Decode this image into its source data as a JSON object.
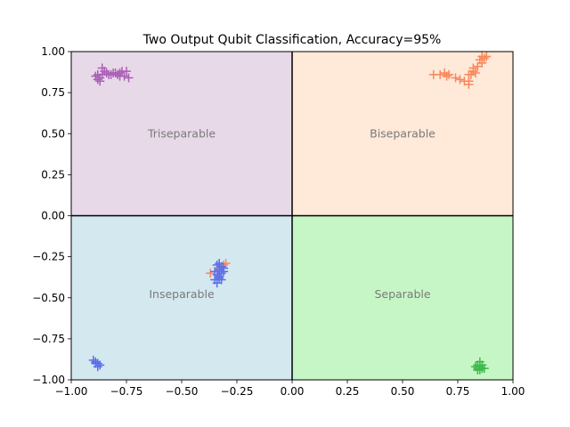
{
  "chart_data": {
    "type": "scatter",
    "title": "Two Output Qubit Classification, Accuracy=95%",
    "xlabel": "",
    "ylabel": "",
    "xlim": [
      -1.0,
      1.0
    ],
    "ylim": [
      -1.0,
      1.0
    ],
    "x_ticks": [
      "−1.00",
      "−0.75",
      "−0.50",
      "−0.25",
      "0.00",
      "0.25",
      "0.50",
      "0.75",
      "1.00"
    ],
    "x_tick_values": [
      -1.0,
      -0.75,
      -0.5,
      -0.25,
      0.0,
      0.25,
      0.5,
      0.75,
      1.0
    ],
    "y_ticks": [
      "−1.00",
      "−0.75",
      "−0.50",
      "−0.25",
      "0.00",
      "0.25",
      "0.50",
      "0.75",
      "1.00"
    ],
    "y_tick_values": [
      -1.0,
      -0.75,
      -0.5,
      -0.25,
      0.0,
      0.25,
      0.5,
      0.75,
      1.0
    ],
    "marker": "plus",
    "grid": false,
    "legend": "none",
    "regions": [
      {
        "label": "Triseparable",
        "x": [
          -1.0,
          0.0
        ],
        "y": [
          0.0,
          1.0
        ],
        "color": "#e8d9e9",
        "label_at": [
          -0.5,
          0.5
        ]
      },
      {
        "label": "Biseparable",
        "x": [
          0.0,
          1.0
        ],
        "y": [
          0.0,
          1.0
        ],
        "color": "#ffe9d8",
        "label_at": [
          0.5,
          0.5
        ]
      },
      {
        "label": "Inseparable",
        "x": [
          -1.0,
          0.0
        ],
        "y": [
          -1.0,
          0.0
        ],
        "color": "#d4e8f0",
        "label_at": [
          -0.5,
          -0.48
        ]
      },
      {
        "label": "Separable",
        "x": [
          0.0,
          1.0
        ],
        "y": [
          -1.0,
          0.0
        ],
        "color": "#c7f6c6",
        "label_at": [
          0.5,
          -0.48
        ]
      }
    ],
    "series": [
      {
        "color": "#aa5fb5",
        "points": [
          [
            -0.88,
            0.83
          ],
          [
            -0.89,
            0.85
          ],
          [
            -0.87,
            0.84
          ],
          [
            -0.86,
            0.86
          ],
          [
            -0.85,
            0.88
          ],
          [
            -0.86,
            0.9
          ],
          [
            -0.84,
            0.87
          ],
          [
            -0.83,
            0.86
          ],
          [
            -0.82,
            0.86
          ],
          [
            -0.81,
            0.87
          ],
          [
            -0.79,
            0.86
          ],
          [
            -0.78,
            0.87
          ],
          [
            -0.77,
            0.88
          ],
          [
            -0.78,
            0.85
          ],
          [
            -0.76,
            0.85
          ],
          [
            -0.74,
            0.84
          ],
          [
            -0.75,
            0.88
          ],
          [
            -0.88,
            0.86
          ],
          [
            -0.87,
            0.82
          ],
          [
            -0.8,
            0.87
          ]
        ]
      },
      {
        "color": "#f8875c",
        "points": [
          [
            0.64,
            0.86
          ],
          [
            0.67,
            0.86
          ],
          [
            0.69,
            0.87
          ],
          [
            0.7,
            0.85
          ],
          [
            0.71,
            0.86
          ],
          [
            0.74,
            0.84
          ],
          [
            0.76,
            0.83
          ],
          [
            0.78,
            0.82
          ],
          [
            0.8,
            0.8
          ],
          [
            0.8,
            0.82
          ],
          [
            0.81,
            0.86
          ],
          [
            0.82,
            0.88
          ],
          [
            0.82,
            0.9
          ],
          [
            0.83,
            0.87
          ],
          [
            0.84,
            0.91
          ],
          [
            0.85,
            0.95
          ],
          [
            0.86,
            0.97
          ],
          [
            0.87,
            0.96
          ],
          [
            0.88,
            0.97
          ],
          [
            0.86,
            0.93
          ],
          [
            0.8,
            0.86
          ]
        ]
      },
      {
        "color": "#f8875c",
        "points": [
          [
            -0.37,
            -0.35
          ],
          [
            -0.31,
            -0.3
          ],
          [
            -0.3,
            -0.29
          ],
          [
            -0.33,
            -0.32
          ]
        ]
      },
      {
        "color": "#5a6ee6",
        "points": [
          [
            -0.34,
            -0.3
          ],
          [
            -0.33,
            -0.33
          ],
          [
            -0.34,
            -0.36
          ],
          [
            -0.33,
            -0.38
          ],
          [
            -0.35,
            -0.39
          ],
          [
            -0.34,
            -0.41
          ],
          [
            -0.33,
            -0.37
          ],
          [
            -0.32,
            -0.35
          ],
          [
            -0.31,
            -0.34
          ],
          [
            -0.32,
            -0.39
          ],
          [
            -0.35,
            -0.34
          ],
          [
            -0.32,
            -0.31
          ],
          [
            -0.33,
            -0.29
          ],
          [
            -0.31,
            -0.32
          ],
          [
            -0.9,
            -0.88
          ],
          [
            -0.89,
            -0.9
          ],
          [
            -0.88,
            -0.9
          ],
          [
            -0.87,
            -0.91
          ],
          [
            -0.89,
            -0.89
          ],
          [
            -0.88,
            -0.92
          ]
        ]
      },
      {
        "color": "#3cb84a",
        "points": [
          [
            0.84,
            -0.91
          ],
          [
            0.85,
            -0.92
          ],
          [
            0.86,
            -0.93
          ],
          [
            0.84,
            -0.93
          ],
          [
            0.83,
            -0.92
          ],
          [
            0.85,
            -0.89
          ],
          [
            0.86,
            -0.91
          ],
          [
            0.87,
            -0.93
          ],
          [
            0.84,
            -0.94
          ],
          [
            0.85,
            -0.94
          ]
        ]
      }
    ]
  }
}
